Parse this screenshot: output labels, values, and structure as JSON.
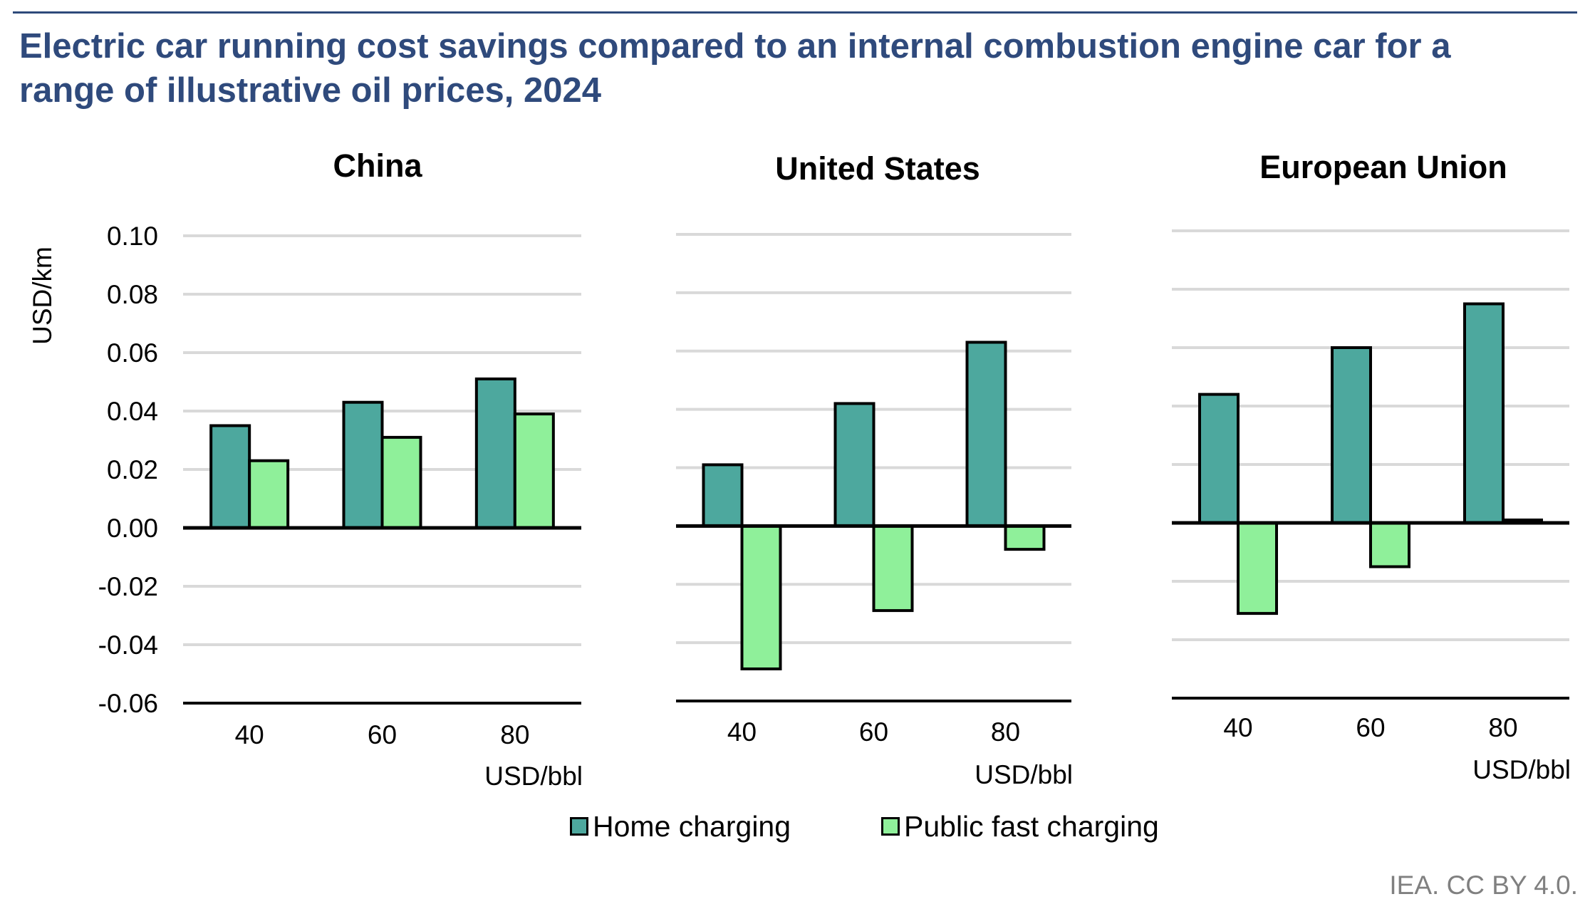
{
  "header": {
    "title_line1": "Electric car running cost savings compared to an internal combustion engine car for a",
    "title_line2": "range of illustrative oil prices, 2024"
  },
  "colors": {
    "title": "#2f4a7c",
    "home_charging": "#4da89e",
    "public_fast_charging": "#8ff09a",
    "gridline": "#d9d9d9",
    "axis": "#000000",
    "footer": "#808080"
  },
  "legend": {
    "items": [
      {
        "label": "Home charging",
        "color": "#4da89e"
      },
      {
        "label": "Public fast charging",
        "color": "#8ff09a"
      }
    ]
  },
  "footer": {
    "credit": "IEA. CC BY 4.0."
  },
  "chart_data": [
    {
      "type": "bar",
      "title": "China",
      "xlabel": "USD/bbl",
      "ylabel": "USD/km",
      "categories": [
        "40",
        "60",
        "80"
      ],
      "series": [
        {
          "name": "Home charging",
          "values": [
            0.035,
            0.043,
            0.051
          ]
        },
        {
          "name": "Public fast charging",
          "values": [
            0.023,
            0.031,
            0.039
          ]
        }
      ],
      "ylim": [
        -0.06,
        0.1
      ],
      "yticks": [
        "0.10",
        "0.08",
        "0.06",
        "0.04",
        "0.02",
        "0.00",
        "-0.02",
        "-0.04",
        "-0.06"
      ],
      "grid": true,
      "legend": "bottom-center"
    },
    {
      "type": "bar",
      "title": "United States",
      "xlabel": "USD/bbl",
      "ylabel": "",
      "categories": [
        "40",
        "60",
        "80"
      ],
      "series": [
        {
          "name": "Home charging",
          "values": [
            0.021,
            0.042,
            0.063
          ]
        },
        {
          "name": "Public fast charging",
          "values": [
            -0.049,
            -0.029,
            -0.008
          ]
        }
      ],
      "ylim": [
        -0.06,
        0.1
      ],
      "grid": true
    },
    {
      "type": "bar",
      "title": "European Union",
      "xlabel": "USD/bbl",
      "ylabel": "",
      "categories": [
        "40",
        "60",
        "80"
      ],
      "series": [
        {
          "name": "Home charging",
          "values": [
            0.044,
            0.06,
            0.075
          ]
        },
        {
          "name": "Public fast charging",
          "values": [
            -0.031,
            -0.015,
            0.001
          ]
        }
      ],
      "ylim": [
        -0.06,
        0.1
      ],
      "grid": true
    }
  ]
}
